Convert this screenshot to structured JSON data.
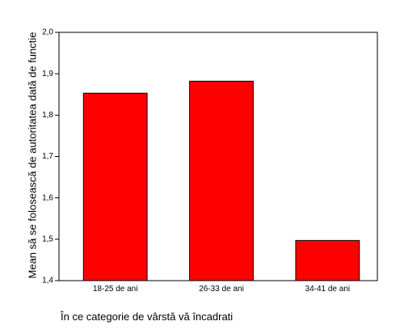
{
  "chart_data": {
    "type": "bar",
    "categories": [
      "18-25 de ani",
      "26-33 de ani",
      "34-41 de ani"
    ],
    "values": [
      1.853,
      1.882,
      1.497
    ],
    "ylim": [
      1.4,
      2.0
    ],
    "yticks": [
      "1,4",
      "1,5",
      "1,6",
      "1,7",
      "1,8",
      "1,9",
      "2,0"
    ],
    "xlabel": "În ce categorie de vârstă vă încadrati",
    "ylabel": "Mean să se folosească de autoritatea dată de functie",
    "grid": false,
    "bar_color": "#ff0000",
    "bar_edge_color": "#000000"
  }
}
